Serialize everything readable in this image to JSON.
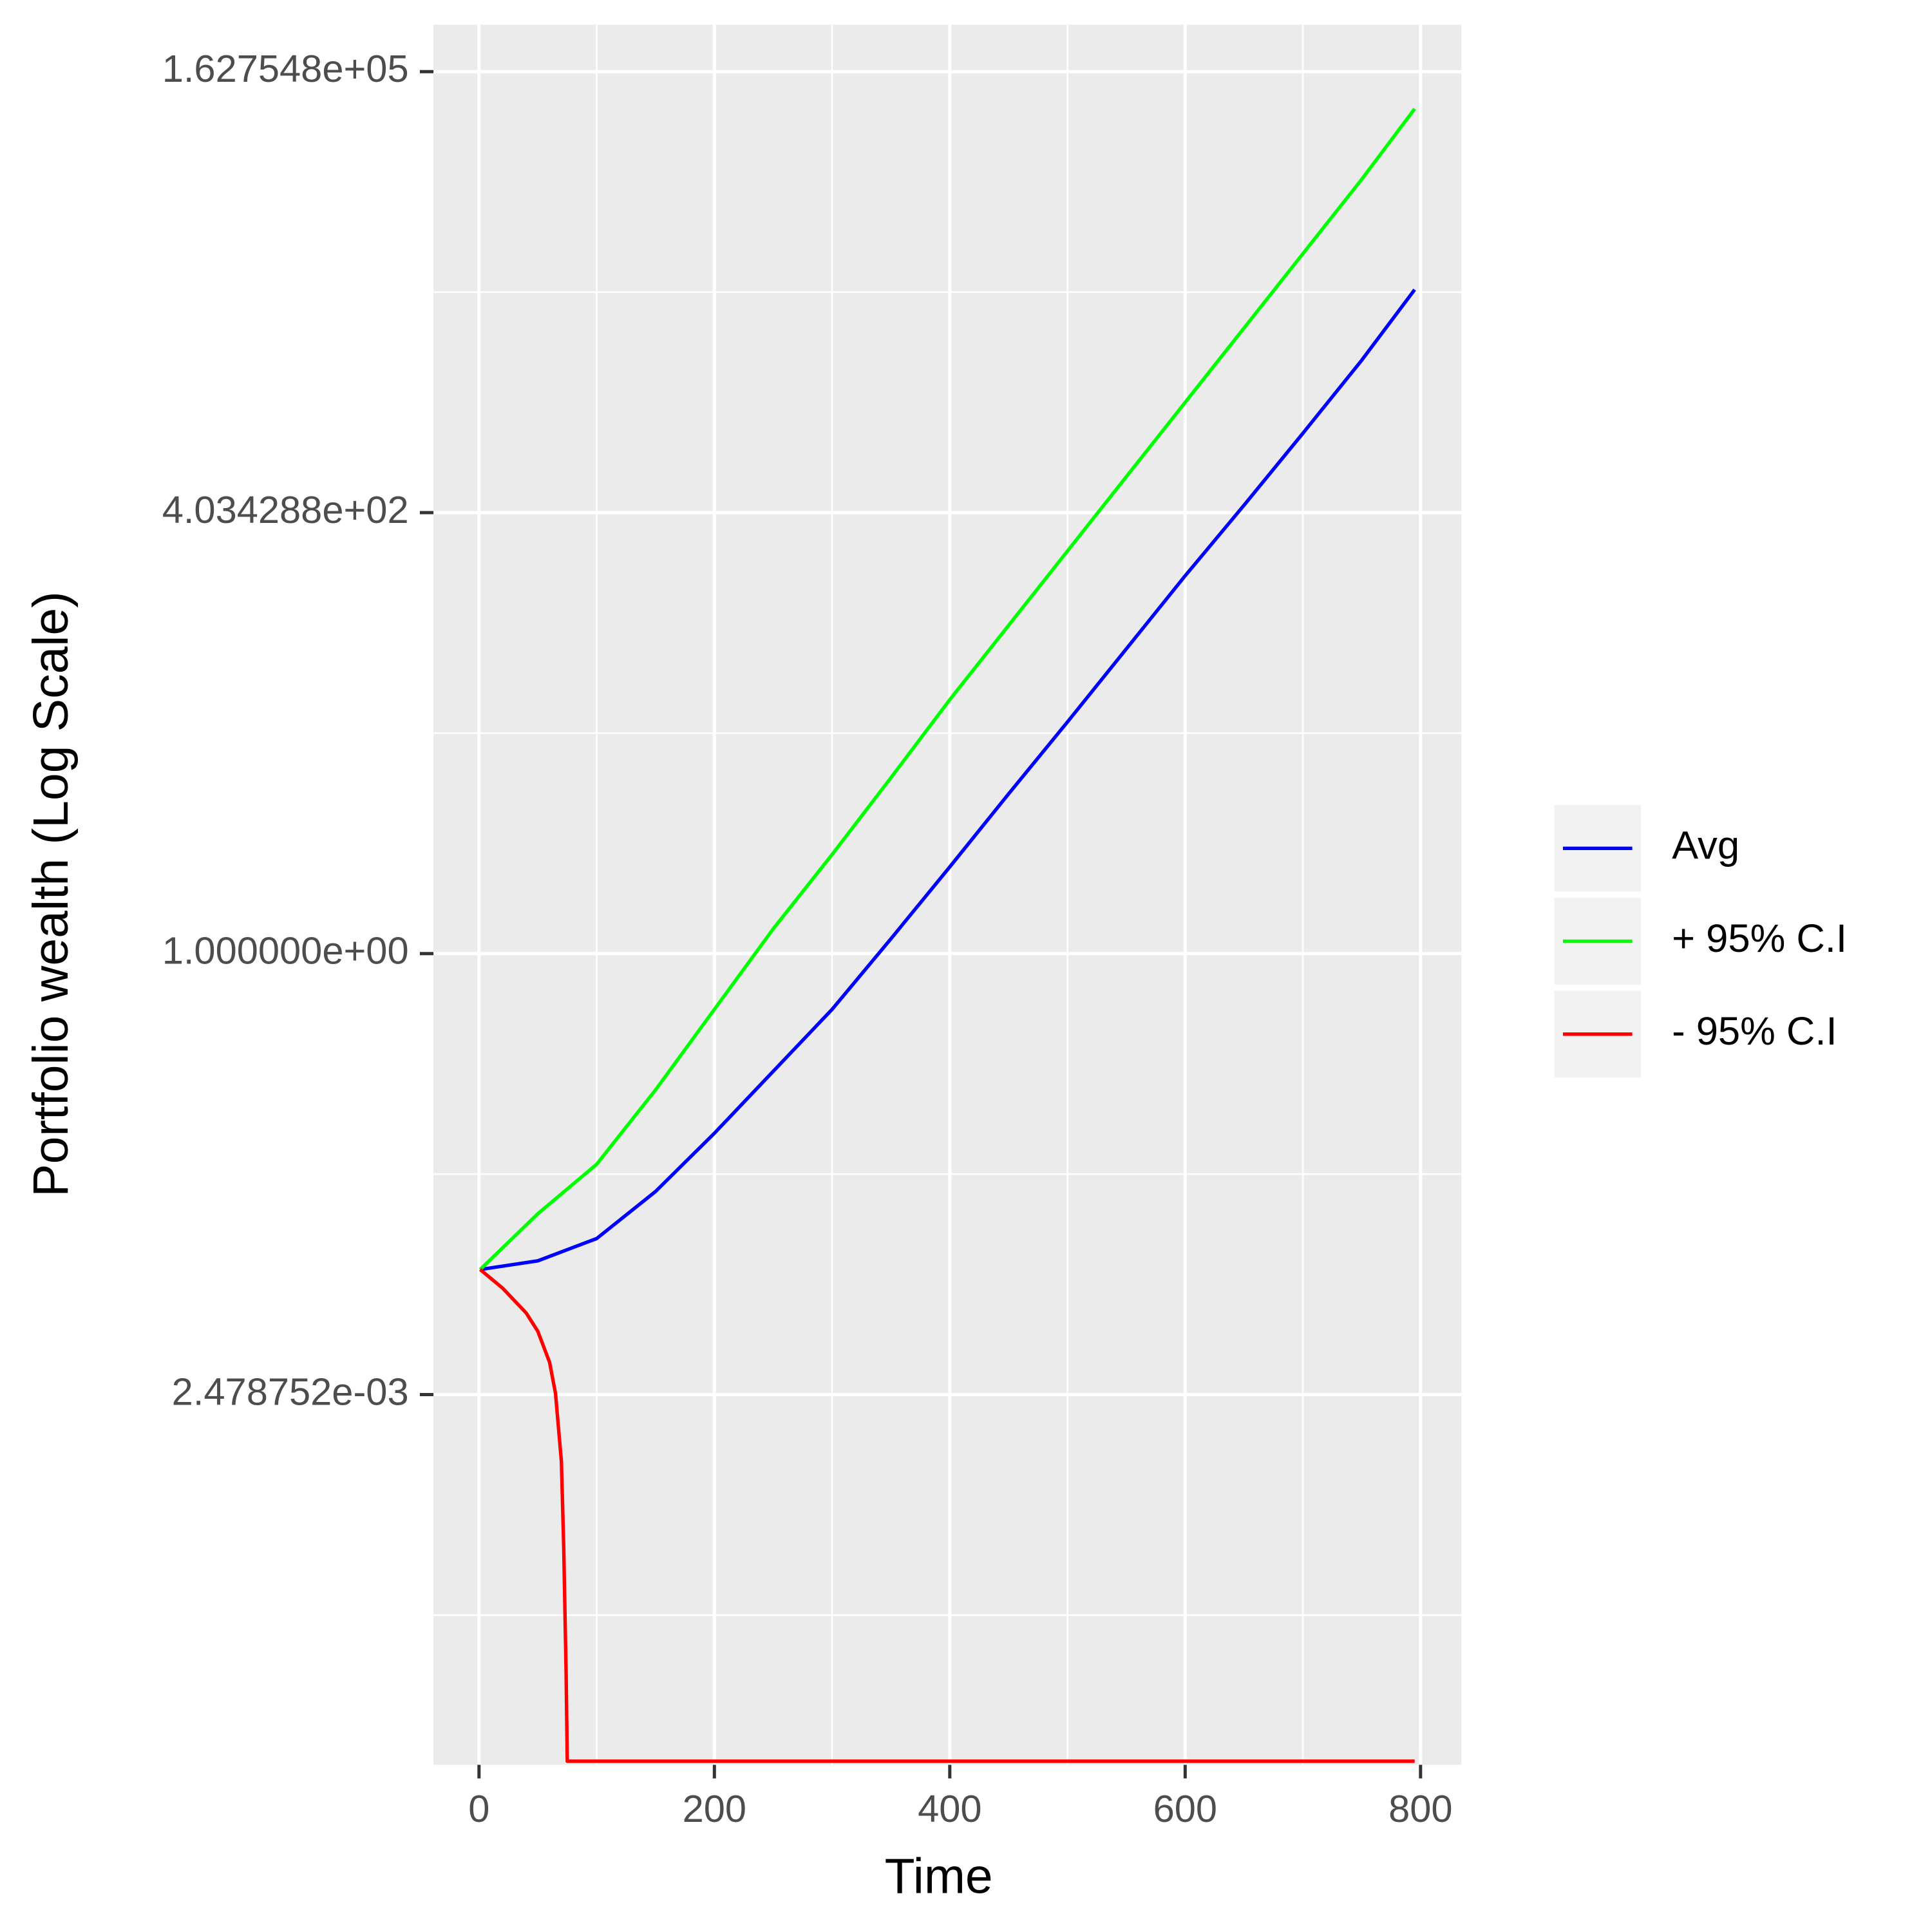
{
  "chart_data": {
    "type": "line",
    "xlabel": "Time",
    "ylabel": "Portfolio wealth (Log Scale)",
    "ylog": true,
    "grid": true,
    "minor_grid": true,
    "legend": "right",
    "xlim": [
      -38.7,
      834.7
    ],
    "xticks": [
      0,
      200,
      400,
      600,
      800
    ],
    "ylim": [
      1.61e-05,
      308000
    ],
    "yticks": [
      {
        "value": 0.002478752,
        "label": "2.478752e-03"
      },
      {
        "value": 1,
        "label": "1.000000e+00"
      },
      {
        "value": 403.4288,
        "label": "4.034288e+02"
      },
      {
        "value": 162754.8,
        "label": "1.627548e+05"
      }
    ],
    "series": [
      {
        "name": "Avg",
        "color": "#0000ff",
        "x": [
          1,
          50,
          100,
          150,
          200,
          250,
          300,
          350,
          400,
          450,
          500,
          550,
          600,
          650,
          700,
          750,
          795
        ],
        "values": [
          0.0136,
          0.0153,
          0.02073,
          0.03931,
          0.08683,
          0.2017,
          0.4684,
          1.224,
          3.254,
          8.796,
          23.38,
          63.2,
          170.8,
          446.3,
          1187,
          3208,
          8385
        ]
      },
      {
        "name": "+ 95% C.I",
        "color": "#00ff00",
        "x": [
          1,
          50,
          100,
          150,
          200,
          250,
          300,
          350,
          400,
          450,
          500,
          550,
          600,
          650,
          700,
          750,
          795
        ],
        "values": [
          0.0136,
          0.02904,
          0.05697,
          0.1566,
          0.4684,
          1.401,
          3.851,
          10.95,
          31.66,
          87.01,
          239.3,
          657.8,
          1808,
          4970,
          13665,
          37595,
          98149
        ]
      },
      {
        "name": "- 95% C.I",
        "color": "#ff0000",
        "x": [
          1,
          20,
          40,
          50,
          60,
          65,
          70,
          72,
          74,
          75,
          795
        ],
        "values": [
          0.0136,
          0.01056,
          0.00754,
          0.00586,
          0.00384,
          0.00252,
          0.000998,
          0.000307,
          5.69e-05,
          1.69e-05,
          1.69e-05
        ]
      }
    ]
  }
}
